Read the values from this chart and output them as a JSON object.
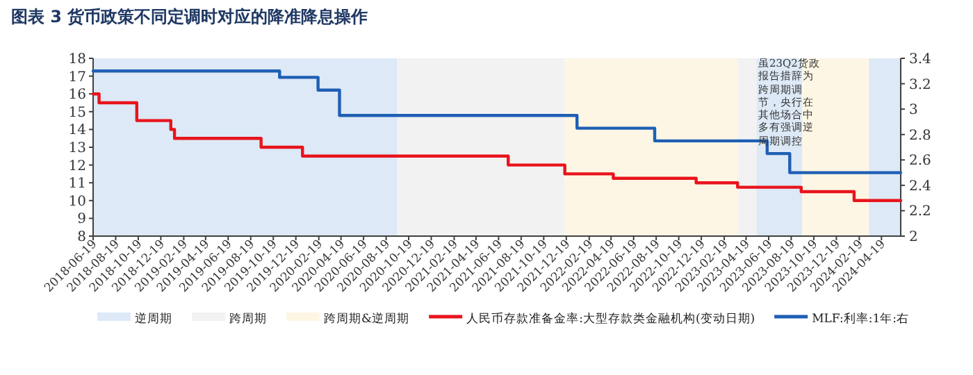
{
  "chart_data": {
    "type": "step",
    "title": "图表 3   货币政策不同定调时对应的降准降息操作",
    "xlim": [
      "2018-06-19",
      "2024-06-10"
    ],
    "xticks": [
      "2018-06-19",
      "2018-08-19",
      "2018-10-19",
      "2018-12-19",
      "2019-02-19",
      "2019-04-19",
      "2019-06-19",
      "2019-08-19",
      "2019-10-19",
      "2019-12-19",
      "2020-02-19",
      "2020-04-19",
      "2020-06-19",
      "2020-08-19",
      "2020-10-19",
      "2020-12-19",
      "2021-02-19",
      "2021-04-19",
      "2021-06-19",
      "2021-08-19",
      "2021-10-19",
      "2021-12-19",
      "2022-02-19",
      "2022-04-19",
      "2022-06-19",
      "2022-08-19",
      "2022-10-19",
      "2022-12-19",
      "2023-02-19",
      "2023-04-19",
      "2023-06-19",
      "2023-08-19",
      "2023-10-19",
      "2023-12-19",
      "2024-02-19",
      "2024-04-19"
    ],
    "ylim": [
      8,
      18
    ],
    "yticks": [
      8,
      9,
      10,
      11,
      12,
      13,
      14,
      15,
      16,
      17,
      18
    ],
    "y2lim": [
      2,
      3.4
    ],
    "y2ticks": [
      2,
      2.2,
      2.4,
      2.6,
      2.8,
      3,
      3.2,
      3.4
    ],
    "bands": [
      {
        "axis": "x",
        "from": "2018-06-19",
        "to": "2020-09-18",
        "label": "逆周期",
        "color": "#dde9f6"
      },
      {
        "axis": "x",
        "from": "2020-09-18",
        "to": "2021-12-15",
        "label": "跨周期",
        "color": "#f2f2f2"
      },
      {
        "axis": "x",
        "from": "2021-12-15",
        "to": "2023-03-27",
        "label": "跨周期&逆周期",
        "color": "#fef6e4"
      },
      {
        "axis": "x",
        "from": "2023-03-27",
        "to": "2023-05-18",
        "color": "#f2f2f2"
      },
      {
        "axis": "x",
        "from": "2023-05-18",
        "to": "2023-09-18",
        "color": "#dde9f6"
      },
      {
        "axis": "x",
        "from": "2023-09-18",
        "to": "2024-03-16",
        "color": "#fef6e4"
      },
      {
        "axis": "x",
        "from": "2024-03-16",
        "to": "2024-06-10",
        "color": "#dde9f6"
      }
    ],
    "series": [
      {
        "name": "人民币存款准备金率:大型存款类金融机构(变动日期)",
        "color": "#e8141c",
        "x": [
          "2018-06-19",
          "2018-07-05",
          "2018-10-15",
          "2019-01-15",
          "2019-01-25",
          "2019-09-16",
          "2020-01-06",
          "2021-07-15",
          "2021-12-15",
          "2022-04-25",
          "2022-12-05",
          "2023-03-27",
          "2023-09-15",
          "2024-02-05",
          "2024-06-10"
        ],
        "values": [
          16,
          15.5,
          14.5,
          14,
          13.5,
          13,
          12.5,
          12,
          11.5,
          11.25,
          11,
          10.75,
          10.5,
          10,
          10
        ]
      },
      {
        "name": "MLF:利率:1年:右",
        "axis": "y2",
        "color": "#1f5fb4",
        "x": [
          "2018-06-19",
          "2019-11-05",
          "2020-02-17",
          "2020-04-15",
          "2022-01-17",
          "2022-08-15",
          "2023-06-15",
          "2023-08-15",
          "2024-06-10"
        ],
        "values": [
          3.3,
          3.25,
          3.15,
          2.95,
          2.85,
          2.75,
          2.65,
          2.5,
          2.5
        ]
      }
    ],
    "annotations": [
      "虽23Q2货政报告措辞为跨周期调节，央行在其他场合中多有强调逆周期调控"
    ],
    "legend": "bottom"
  }
}
